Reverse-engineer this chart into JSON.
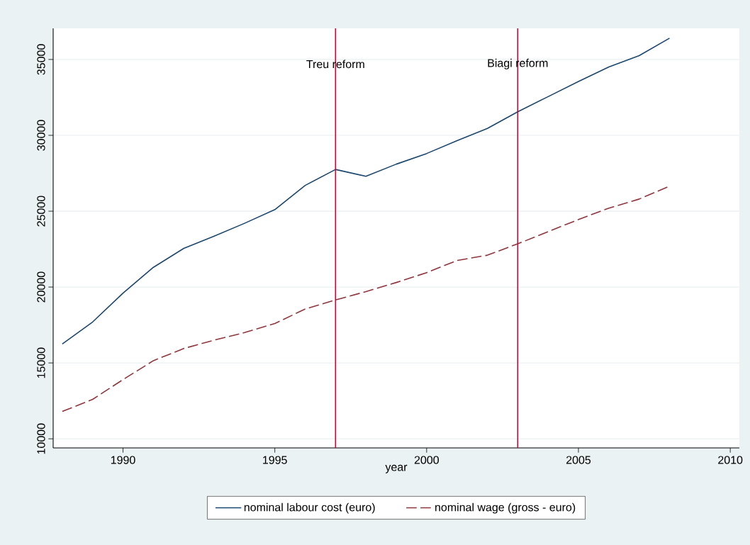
{
  "chart_data": {
    "type": "line",
    "xlabel": "year",
    "x": [
      1988,
      1989,
      1990,
      1991,
      1992,
      1993,
      1994,
      1995,
      1996,
      1997,
      1998,
      1999,
      2000,
      2001,
      2002,
      2003,
      2004,
      2005,
      2006,
      2007,
      2008
    ],
    "series": [
      {
        "name": "nominal labour cost (euro)",
        "color": "#1a476f",
        "line_style": "solid",
        "values": [
          16250,
          17700,
          19600,
          21300,
          22550,
          23350,
          24200,
          25100,
          26700,
          27750,
          27300,
          28100,
          28800,
          29650,
          30450,
          31550,
          32550,
          33550,
          34500,
          35250,
          36400
        ]
      },
      {
        "name": "nominal wage (gross - euro)",
        "color": "#90353b",
        "line_style": "dashed",
        "values": [
          11800,
          12600,
          13900,
          15150,
          15950,
          16500,
          17000,
          17600,
          18550,
          19150,
          19700,
          20300,
          20950,
          21750,
          22100,
          22850,
          23650,
          24450,
          25200,
          25800,
          26650
        ]
      }
    ],
    "ref_lines": [
      {
        "axis": "x",
        "value": 1997,
        "label": "Treu reform",
        "color": "#c10534"
      },
      {
        "axis": "x",
        "value": 2003,
        "label": "Biagi reform",
        "color": "#c10534"
      }
    ],
    "xlim": [
      1987.7,
      2010.3
    ],
    "ylim": [
      9400,
      37050
    ],
    "xticks": [
      1990,
      1995,
      2000,
      2005,
      2010
    ],
    "yticks": [
      10000,
      15000,
      20000,
      25000,
      30000,
      35000
    ],
    "grid": "y",
    "legend": "bottom",
    "marker": "none"
  }
}
